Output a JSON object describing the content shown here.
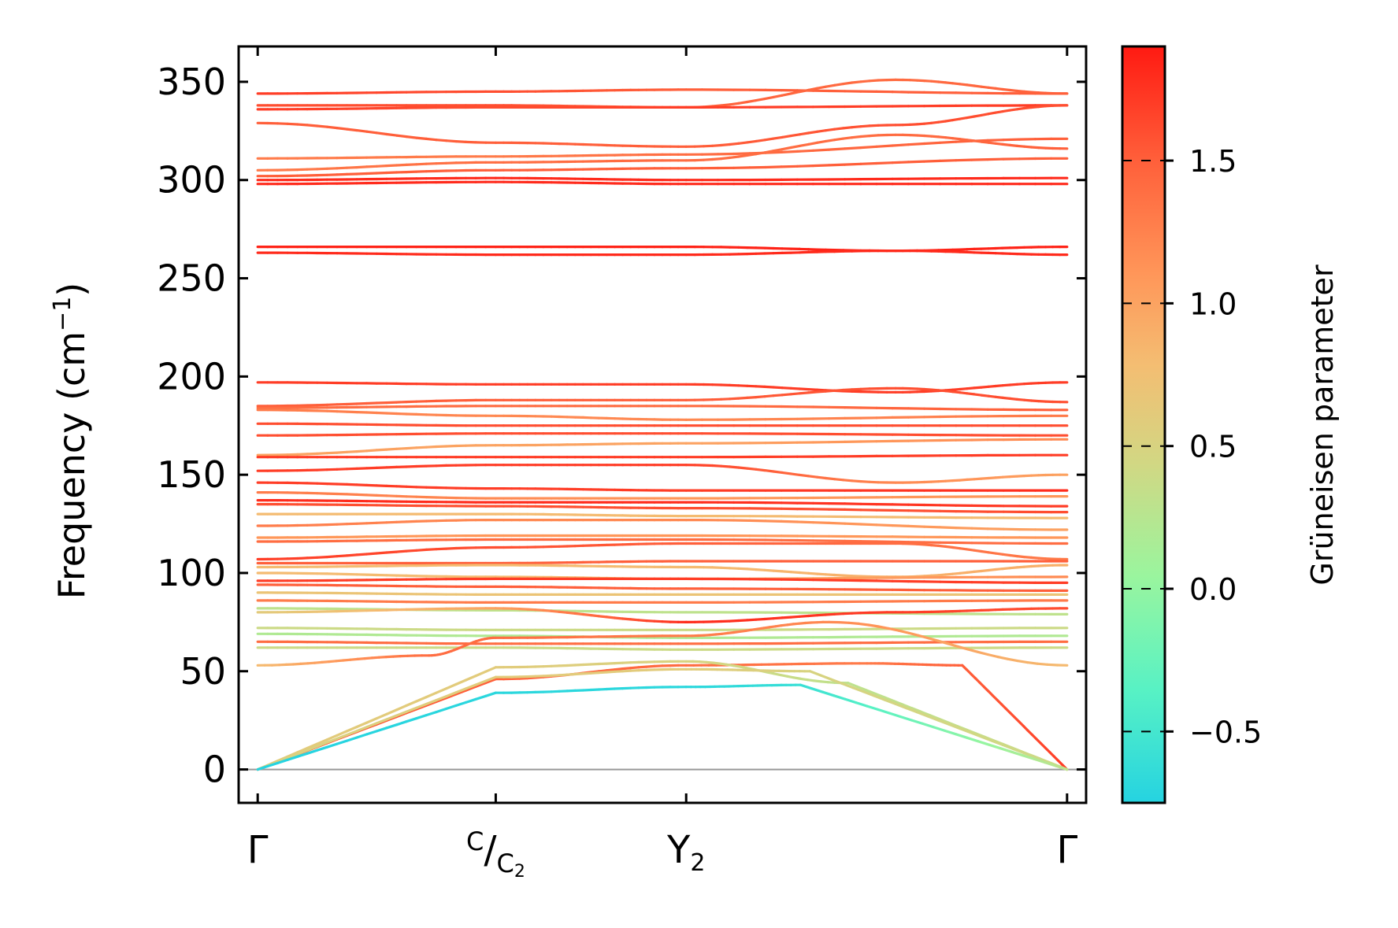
{
  "chart_data": {
    "type": "line",
    "title": "",
    "xlabel": "",
    "ylabel": "Frequency (cm",
    "ylabel_sup": "−1",
    "ylabel_close": ")",
    "ylim": [
      -17,
      368
    ],
    "yticks": [
      0,
      50,
      100,
      150,
      200,
      250,
      300,
      350
    ],
    "ytick_labels": [
      "0",
      "50",
      "100",
      "150",
      "200",
      "250",
      "300",
      "350"
    ],
    "xlim": [
      -0.1,
      4.35
    ],
    "xticks": [
      {
        "x": 0,
        "label": "Γ"
      },
      {
        "x": 1.25,
        "label": "C",
        "slash": "/",
        "sub_base": "C",
        "sub_index": "2"
      },
      {
        "x": 2.25,
        "label": "Y",
        "sub_index": "2"
      },
      {
        "x": 4.25,
        "label": "Γ"
      }
    ],
    "zero_line": 0,
    "colorbar": {
      "label": "Grüneisen parameter",
      "range": [
        -0.75,
        1.9
      ],
      "ticks": [
        -0.5,
        0.0,
        0.5,
        1.0,
        1.5
      ],
      "tick_labels": [
        "−0.5",
        "0.0",
        "0.5",
        "1.0",
        "1.5"
      ],
      "colors": [
        "#25d3e1",
        "#58f2c4",
        "#9af59e",
        "#d2d783",
        "#f4bd72",
        "#ff9659",
        "#ff5f3a",
        "#ff1a12"
      ],
      "color_stops": [
        0,
        0.15,
        0.3,
        0.45,
        0.58,
        0.7,
        0.85,
        1.0
      ]
    },
    "series": [
      {
        "x": [
          0,
          1.25,
          2.25,
          4.25
        ],
        "y": [
          344,
          345,
          346,
          344
        ],
        "g": [
          1.7,
          1.6,
          1.5,
          1.5
        ]
      },
      {
        "x": [
          0,
          1.25,
          2.25,
          3.35,
          4.25
        ],
        "y": [
          338,
          338,
          337,
          351,
          344
        ],
        "g": [
          1.6,
          1.6,
          1.5,
          1.4,
          1.5
        ]
      },
      {
        "x": [
          0,
          1.25,
          2.25,
          4.25
        ],
        "y": [
          336,
          337,
          337,
          338
        ],
        "g": [
          1.7,
          1.6,
          1.7,
          1.7
        ]
      },
      {
        "x": [
          0,
          1.25,
          2.25,
          3.35,
          4.25
        ],
        "y": [
          329,
          319,
          317,
          328,
          338
        ],
        "g": [
          1.5,
          1.5,
          1.5,
          1.6,
          1.6
        ]
      },
      {
        "x": [
          0,
          1.25,
          2.25,
          4.25
        ],
        "y": [
          311,
          312,
          313,
          321
        ],
        "g": [
          1.3,
          1.3,
          1.4,
          1.5
        ]
      },
      {
        "x": [
          0,
          1.25,
          2.25,
          3.35,
          4.25
        ],
        "y": [
          305,
          309,
          310,
          323,
          316
        ],
        "g": [
          1.3,
          1.4,
          1.4,
          1.4,
          1.5
        ]
      },
      {
        "x": [
          0,
          1.25,
          2.25,
          4.25
        ],
        "y": [
          302,
          305,
          306,
          311
        ],
        "g": [
          1.5,
          1.5,
          1.5,
          1.5
        ]
      },
      {
        "x": [
          0,
          1.25,
          2.25,
          4.25
        ],
        "y": [
          300,
          301,
          300,
          301
        ],
        "g": [
          1.8,
          1.8,
          1.8,
          1.8
        ]
      },
      {
        "x": [
          0,
          1.25,
          2.25,
          4.25
        ],
        "y": [
          298,
          299,
          298,
          298
        ],
        "g": [
          1.8,
          1.8,
          1.8,
          1.8
        ]
      },
      {
        "x": [
          0,
          1.25,
          2.25,
          3.35,
          4.25
        ],
        "y": [
          266,
          266,
          266,
          264,
          266
        ],
        "g": [
          1.85,
          1.85,
          1.85,
          1.85,
          1.85
        ]
      },
      {
        "x": [
          0,
          1.25,
          2.25,
          3.35,
          4.25
        ],
        "y": [
          263,
          262,
          262,
          264,
          262
        ],
        "g": [
          1.8,
          1.8,
          1.8,
          1.8,
          1.8
        ]
      },
      {
        "x": [
          0,
          1.25,
          2.25,
          3.35,
          4.25
        ],
        "y": [
          197,
          196,
          196,
          192,
          197
        ],
        "g": [
          1.7,
          1.7,
          1.7,
          1.7,
          1.7
        ]
      },
      {
        "x": [
          0,
          1.25,
          2.25,
          3.35,
          4.25
        ],
        "y": [
          185,
          188,
          188,
          194,
          187
        ],
        "g": [
          1.5,
          1.5,
          1.5,
          1.6,
          1.6
        ]
      },
      {
        "x": [
          0,
          1.25,
          2.25,
          4.25
        ],
        "y": [
          184,
          185,
          185,
          183
        ],
        "g": [
          1.4,
          1.4,
          1.4,
          1.5
        ]
      },
      {
        "x": [
          0,
          1.25,
          2.25,
          4.25
        ],
        "y": [
          183,
          180,
          178,
          180
        ],
        "g": [
          1.3,
          1.2,
          1.2,
          1.3
        ]
      },
      {
        "x": [
          0,
          1.25,
          2.25,
          4.25
        ],
        "y": [
          176,
          175,
          175,
          175
        ],
        "g": [
          1.6,
          1.6,
          1.6,
          1.6
        ]
      },
      {
        "x": [
          0,
          1.25,
          2.25,
          4.25
        ],
        "y": [
          170,
          171,
          171,
          170
        ],
        "g": [
          1.6,
          1.6,
          1.6,
          1.6
        ]
      },
      {
        "x": [
          0,
          1.25,
          2.25,
          4.25
        ],
        "y": [
          160,
          165,
          166,
          168
        ],
        "g": [
          1.0,
          1.0,
          1.0,
          1.2
        ]
      },
      {
        "x": [
          0,
          1.25,
          2.25,
          4.25
        ],
        "y": [
          159,
          159,
          159,
          160
        ],
        "g": [
          1.7,
          1.7,
          1.7,
          1.7
        ]
      },
      {
        "x": [
          0,
          1.25,
          2.25,
          3.35,
          4.25
        ],
        "y": [
          152,
          155,
          155,
          146,
          150
        ],
        "g": [
          1.7,
          1.7,
          1.7,
          1.2,
          1.0
        ]
      },
      {
        "x": [
          0,
          1.25,
          2.25,
          4.25
        ],
        "y": [
          146,
          143,
          142,
          142
        ],
        "g": [
          1.7,
          1.7,
          1.7,
          1.8
        ]
      },
      {
        "x": [
          0,
          1.25,
          2.25,
          4.25
        ],
        "y": [
          141,
          138,
          138,
          139
        ],
        "g": [
          1.3,
          1.2,
          1.1,
          1.1
        ]
      },
      {
        "x": [
          0,
          1.25,
          2.25,
          4.25
        ],
        "y": [
          137,
          136,
          136,
          134
        ],
        "g": [
          1.8,
          1.8,
          1.8,
          1.7
        ]
      },
      {
        "x": [
          0,
          1.25,
          2.25,
          4.25
        ],
        "y": [
          135,
          134,
          133,
          131
        ],
        "g": [
          1.6,
          1.6,
          1.6,
          1.6
        ]
      },
      {
        "x": [
          0,
          1.25,
          2.25,
          4.25
        ],
        "y": [
          130,
          130,
          129,
          128
        ],
        "g": [
          0.8,
          0.8,
          0.8,
          0.8
        ]
      },
      {
        "x": [
          0,
          1.25,
          2.25,
          4.25
        ],
        "y": [
          124,
          127,
          127,
          122
        ],
        "g": [
          1.3,
          1.2,
          1.2,
          1.0
        ]
      },
      {
        "x": [
          0,
          1.25,
          2.25,
          4.25
        ],
        "y": [
          118,
          119,
          119,
          118
        ],
        "g": [
          1.1,
          1.1,
          1.1,
          1.1
        ]
      },
      {
        "x": [
          0,
          1.25,
          2.25,
          4.25
        ],
        "y": [
          116,
          117,
          117,
          115
        ],
        "g": [
          1.4,
          1.4,
          1.4,
          1.4
        ]
      },
      {
        "x": [
          0,
          1.25,
          2.25,
          3.35,
          4.25
        ],
        "y": [
          107,
          113,
          115,
          115,
          107
        ],
        "g": [
          1.7,
          1.6,
          1.5,
          1.4,
          1.3
        ]
      },
      {
        "x": [
          0,
          1.25,
          2.25,
          4.25
        ],
        "y": [
          105,
          105,
          106,
          106
        ],
        "g": [
          1.5,
          1.5,
          1.5,
          1.5
        ]
      },
      {
        "x": [
          0,
          1.25,
          2.25,
          3.35,
          4.25
        ],
        "y": [
          103,
          104,
          103,
          98,
          104
        ],
        "g": [
          0.8,
          0.8,
          0.8,
          0.9,
          0.9
        ]
      },
      {
        "x": [
          0,
          1.25,
          2.25,
          4.25
        ],
        "y": [
          100,
          98,
          97,
          98
        ],
        "g": [
          0.8,
          0.8,
          0.9,
          1.2
        ]
      },
      {
        "x": [
          0,
          1.25,
          2.25,
          4.25
        ],
        "y": [
          96,
          97,
          97,
          95
        ],
        "g": [
          1.7,
          1.7,
          1.7,
          1.7
        ]
      },
      {
        "x": [
          0,
          1.25,
          2.25,
          4.25
        ],
        "y": [
          94,
          93,
          92,
          91
        ],
        "g": [
          1.5,
          1.5,
          1.5,
          1.5
        ]
      },
      {
        "x": [
          0,
          1.25,
          2.25,
          4.25
        ],
        "y": [
          90,
          89,
          89,
          89
        ],
        "g": [
          0.7,
          0.7,
          0.7,
          0.7
        ]
      },
      {
        "x": [
          0,
          1.25,
          2.25,
          4.25
        ],
        "y": [
          86,
          85,
          85,
          86
        ],
        "g": [
          1.3,
          1.3,
          1.3,
          1.3
        ]
      },
      {
        "x": [
          0,
          1.25,
          2.25,
          4.25
        ],
        "y": [
          82,
          81,
          80,
          79
        ],
        "g": [
          0.3,
          0.3,
          0.3,
          0.3
        ]
      },
      {
        "x": [
          0,
          1.25,
          2.25,
          3.35,
          4.25
        ],
        "y": [
          80,
          82,
          75,
          80,
          82
        ],
        "g": [
          0.6,
          1.0,
          1.8,
          1.7,
          1.6
        ]
      },
      {
        "x": [
          0,
          1.25,
          2.25,
          4.25
        ],
        "y": [
          72,
          71,
          71,
          72
        ],
        "g": [
          0.4,
          0.4,
          0.4,
          0.4
        ]
      },
      {
        "x": [
          0,
          1.25,
          2.25,
          4.25
        ],
        "y": [
          69,
          68,
          67,
          68
        ],
        "g": [
          0.2,
          0.2,
          0.2,
          0.2
        ]
      },
      {
        "x": [
          0,
          1.25,
          2.25,
          4.25
        ],
        "y": [
          65,
          64,
          64,
          65
        ],
        "g": [
          1.4,
          1.4,
          1.4,
          1.4
        ]
      },
      {
        "x": [
          0,
          1.25,
          2.25,
          4.25
        ],
        "y": [
          62,
          62,
          61,
          62
        ],
        "g": [
          0.4,
          0.4,
          0.4,
          0.4
        ]
      },
      {
        "x": [
          0,
          0.9,
          1.25,
          2.25,
          3.0,
          4.25
        ],
        "y": [
          53,
          58,
          67,
          68,
          75,
          53
        ],
        "g": [
          0.8,
          1.4,
          1.4,
          1.3,
          1.2,
          0.8
        ]
      },
      {
        "x": [
          0,
          1.25,
          2.25,
          3.2,
          3.7,
          4.25
        ],
        "y": [
          0,
          46,
          53,
          54,
          53,
          0
        ],
        "g": [
          1.6,
          1.5,
          1.4,
          1.3,
          1.5,
          1.7
        ]
      },
      {
        "x": [
          0,
          1.25,
          2.25,
          3.1,
          4.25
        ],
        "y": [
          0,
          52,
          55,
          44,
          0
        ],
        "g": [
          0.6,
          0.6,
          0.5,
          0.3,
          0.4
        ]
      },
      {
        "x": [
          0,
          1.25,
          2.25,
          2.9,
          4.25
        ],
        "y": [
          0,
          47,
          51,
          50,
          0
        ],
        "g": [
          0.5,
          0.6,
          0.6,
          0.5,
          0.4
        ]
      },
      {
        "x": [
          0,
          1.25,
          2.25,
          2.85,
          4.25
        ],
        "y": [
          0,
          39,
          42,
          43,
          0
        ],
        "g": [
          -0.75,
          -0.7,
          -0.7,
          -0.6,
          0.3
        ]
      }
    ]
  }
}
